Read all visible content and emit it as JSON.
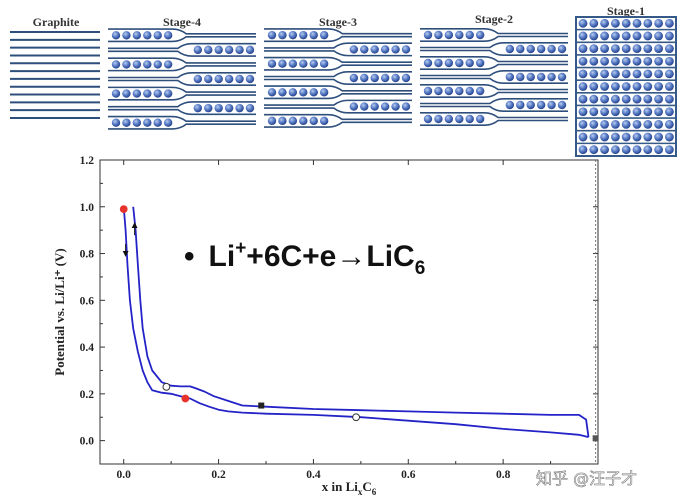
{
  "stages": [
    {
      "label": "Graphite",
      "layers": 12,
      "pattern": "none"
    },
    {
      "label": "Stage-4",
      "layers": 7,
      "pattern": "alt4"
    },
    {
      "label": "Stage-3",
      "layers": 7,
      "pattern": "alt3"
    },
    {
      "label": "Stage-2",
      "layers": 7,
      "pattern": "alt2"
    },
    {
      "label": "Stage-1",
      "layers": 7,
      "pattern": "full"
    }
  ],
  "equation": {
    "bullet": "•",
    "lhs": "Li",
    "sup": "+",
    "rhs": "+6C+e→LiC",
    "sub": "6"
  },
  "chart_data": {
    "type": "line",
    "xlabel_main": "x in Li",
    "xlabel_sub": "x",
    "xlabel_tail": "C",
    "xlabel_tail_sub": "6",
    "ylabel": "Potential vs. Li/Li⁺ (V)",
    "xlim": [
      -0.05,
      1.0
    ],
    "ylim": [
      -0.1,
      1.2
    ],
    "xticks": [
      "0.0",
      "0.2",
      "0.4",
      "0.6",
      "0.8"
    ],
    "xtick_values": [
      0.0,
      0.2,
      0.4,
      0.6,
      0.8
    ],
    "yticks": [
      "0.0",
      "0.2",
      "0.4",
      "0.6",
      "0.8",
      "1.0",
      "1.2"
    ],
    "ytick_values": [
      0.0,
      0.2,
      0.4,
      0.6,
      0.8,
      1.0,
      1.2
    ],
    "line_color": "#2323c8",
    "series": [
      {
        "role": "discharge",
        "x": [
          0.0,
          0.004,
          0.008,
          0.013,
          0.02,
          0.03,
          0.04,
          0.05,
          0.06,
          0.08,
          0.1,
          0.12,
          0.14,
          0.16,
          0.18,
          0.2,
          0.22,
          0.25,
          0.3,
          0.4,
          0.5,
          0.6,
          0.7,
          0.8,
          0.9,
          0.96,
          0.98
        ],
        "y": [
          1.0,
          0.9,
          0.75,
          0.6,
          0.48,
          0.38,
          0.3,
          0.25,
          0.215,
          0.205,
          0.2,
          0.19,
          0.18,
          0.16,
          0.145,
          0.132,
          0.125,
          0.12,
          0.115,
          0.11,
          0.1,
          0.085,
          0.07,
          0.05,
          0.035,
          0.025,
          0.015
        ]
      },
      {
        "role": "charge",
        "x": [
          0.98,
          0.975,
          0.96,
          0.9,
          0.8,
          0.7,
          0.6,
          0.5,
          0.4,
          0.3,
          0.25,
          0.22,
          0.19,
          0.17,
          0.15,
          0.14,
          0.12,
          0.1,
          0.08,
          0.06,
          0.05,
          0.04,
          0.035,
          0.03,
          0.025,
          0.02
        ],
        "y": [
          0.015,
          0.09,
          0.11,
          0.11,
          0.115,
          0.12,
          0.125,
          0.13,
          0.135,
          0.145,
          0.15,
          0.17,
          0.19,
          0.21,
          0.225,
          0.232,
          0.232,
          0.235,
          0.25,
          0.3,
          0.36,
          0.48,
          0.6,
          0.75,
          0.9,
          1.0
        ]
      }
    ],
    "markers": [
      {
        "x": 0.0,
        "y": 0.99,
        "shape": "circle",
        "fill": "#e8322c"
      },
      {
        "x": 0.13,
        "y": 0.18,
        "shape": "circle",
        "fill": "#e8322c"
      },
      {
        "x": 0.09,
        "y": 0.23,
        "shape": "circle",
        "fill": "#ffffff"
      },
      {
        "x": 0.49,
        "y": 0.1,
        "shape": "circle",
        "fill": "#ffffff"
      },
      {
        "x": 0.29,
        "y": 0.15,
        "shape": "square",
        "fill": "#222222"
      },
      {
        "x": 0.995,
        "y": 0.01,
        "shape": "square",
        "fill": "#555555"
      }
    ],
    "arrows": [
      {
        "x": 0.004,
        "y": 0.82,
        "direction": "down"
      },
      {
        "x": 0.023,
        "y": 0.9,
        "direction": "up"
      }
    ],
    "vertical_dashed_x": 0.995
  },
  "watermark": "知乎 @汪子才"
}
